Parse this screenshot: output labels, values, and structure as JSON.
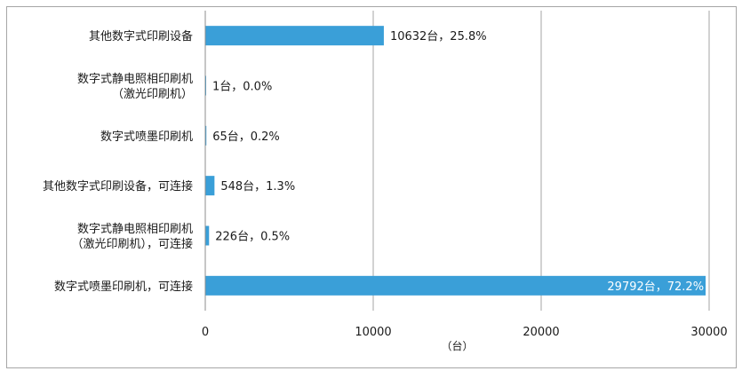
{
  "chart_data": {
    "type": "bar",
    "orientation": "horizontal",
    "categories": [
      [
        "其他数字式印刷设备"
      ],
      [
        "数字式静电照相印刷机",
        "（激光印刷机）"
      ],
      [
        "数字式喷墨印刷机"
      ],
      [
        "其他数字式印刷设备，可连接"
      ],
      [
        "数字式静电照相印刷机",
        "（激光印刷机），可连接"
      ],
      [
        "数字式喷墨印刷机，可连接"
      ]
    ],
    "values": [
      10632,
      1,
      65,
      548,
      226,
      29792
    ],
    "data_labels": [
      "10632台，25.8%",
      "1台，0.0%",
      "65台，0.2%",
      "548台，1.3%",
      "226台，0.5%",
      "29792台，72.2%"
    ],
    "xlim": [
      0,
      30000
    ],
    "xticks": [
      0,
      10000,
      20000,
      30000
    ],
    "xlabel": "（台）",
    "grid": true,
    "bar_color": "#3a9fd8"
  }
}
